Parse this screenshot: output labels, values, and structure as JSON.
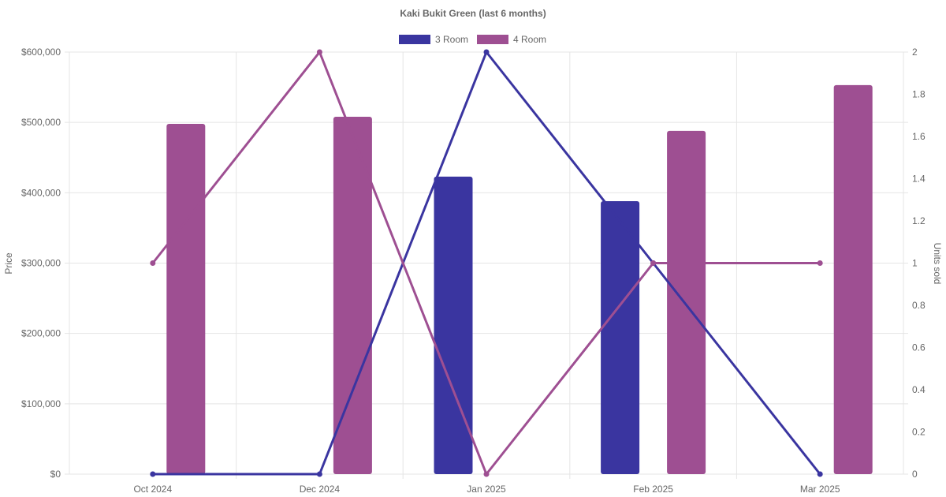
{
  "chart_data": {
    "type": "bar",
    "title": "Kaki Bukit Green (last 6 months)",
    "categories": [
      "Oct 2024",
      "Dec 2024",
      "Jan 2025",
      "Feb 2025",
      "Mar 2025"
    ],
    "y_left": {
      "label": "Price",
      "ylim": [
        0,
        600000
      ],
      "ticks": [
        0,
        100000,
        200000,
        300000,
        400000,
        500000,
        600000
      ],
      "tick_labels": [
        "$0",
        "$100,000",
        "$200,000",
        "$300,000",
        "$400,000",
        "$500,000",
        "$600,000"
      ]
    },
    "y_right": {
      "label": "Units sold",
      "ylim": [
        0,
        2
      ],
      "ticks": [
        0,
        0.2,
        0.4,
        0.6,
        0.8,
        1,
        1.2,
        1.4,
        1.6,
        1.8,
        2
      ],
      "tick_labels": [
        "0",
        "0.2",
        "0.4",
        "0.6",
        "0.8",
        "1",
        "1.2",
        "1.4",
        "1.6",
        "1.8",
        "2"
      ]
    },
    "series": [
      {
        "name": "3 Room",
        "color": "#3a35a0",
        "bar_values": [
          null,
          null,
          423000,
          388000,
          null
        ],
        "line_values": [
          0,
          0,
          2,
          1,
          0
        ]
      },
      {
        "name": "4 Room",
        "color": "#9e4f92",
        "bar_values": [
          498000,
          508000,
          null,
          488000,
          553000
        ],
        "line_values": [
          1,
          2,
          0,
          1,
          1
        ]
      }
    ],
    "legend_position": "top",
    "grid": true
  }
}
